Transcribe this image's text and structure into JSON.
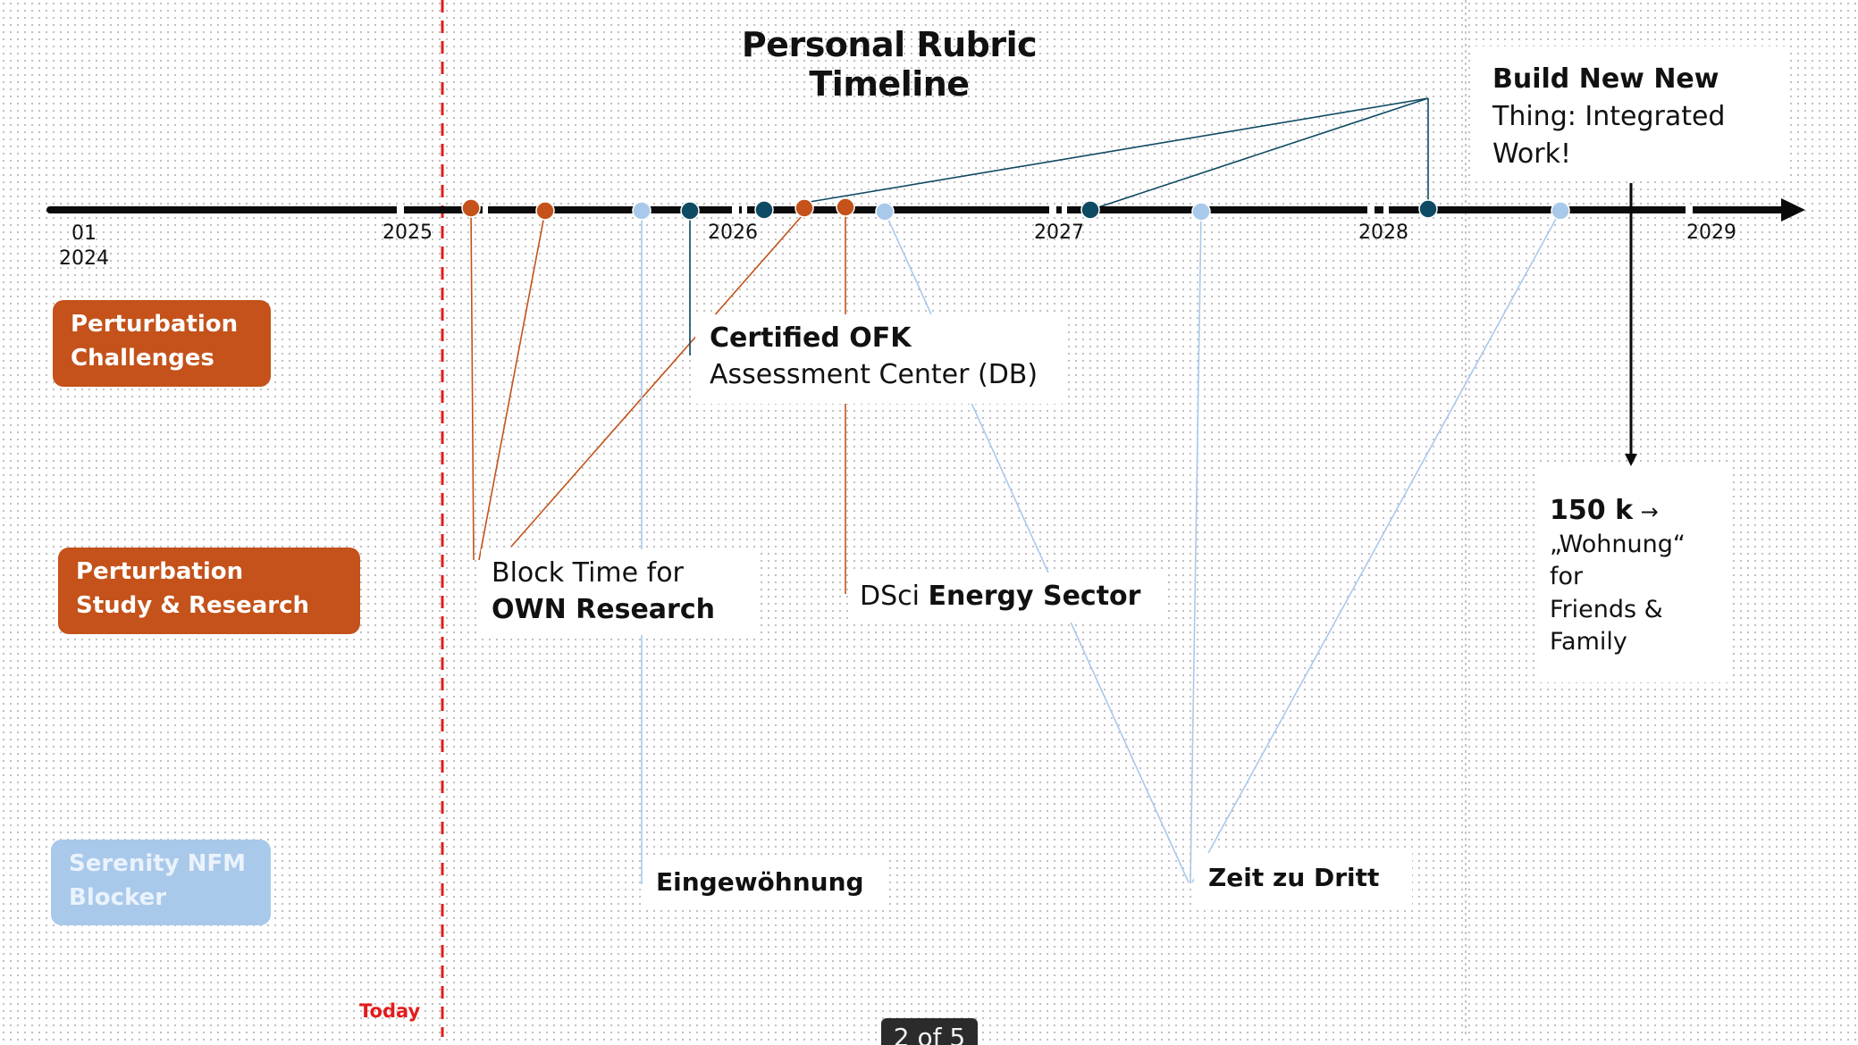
{
  "title": "Personal Rubric Timeline",
  "axis": {
    "first_label_line1": "01",
    "first_label_line2": "2024",
    "years": [
      "2025",
      "2026",
      "2027",
      "2028",
      "2029"
    ]
  },
  "tracks": {
    "challenges_line1": "Perturbation",
    "challenges_line2": "Challenges",
    "study_line1": "Perturbation",
    "study_line2": "Study & Research",
    "blocker_line1": "Serenity NFM",
    "blocker_line2": "Blocker"
  },
  "events": {
    "build_bold": "Build New New",
    "build_rest1": "Thing: Integrated",
    "build_rest2": "Work!",
    "ofk_bold": "Certified OFK",
    "ofk_rest": "Assessment Center (DB)",
    "block_line1": "Block Time for",
    "block_bold": "OWN Research",
    "dsci_prefix": "DSci ",
    "dsci_bold": "Energy Sector",
    "wohnung_bold": "150 k",
    "wohnung_arrow": "→",
    "wohnung_l2": "„Wohnung“",
    "wohnung_l3": "for",
    "wohnung_l4": "Friends &",
    "wohnung_l5": "Family",
    "eingewoehnung": "Eingewöhnung",
    "zeit": "Zeit zu Dritt"
  },
  "today_label": "Today",
  "pager_text": "2 of 5",
  "colors": {
    "orange": "#c4521a",
    "dark_teal": "#0e4a63",
    "light_blue": "#a9c9eb",
    "today_red": "#e31b1b"
  }
}
